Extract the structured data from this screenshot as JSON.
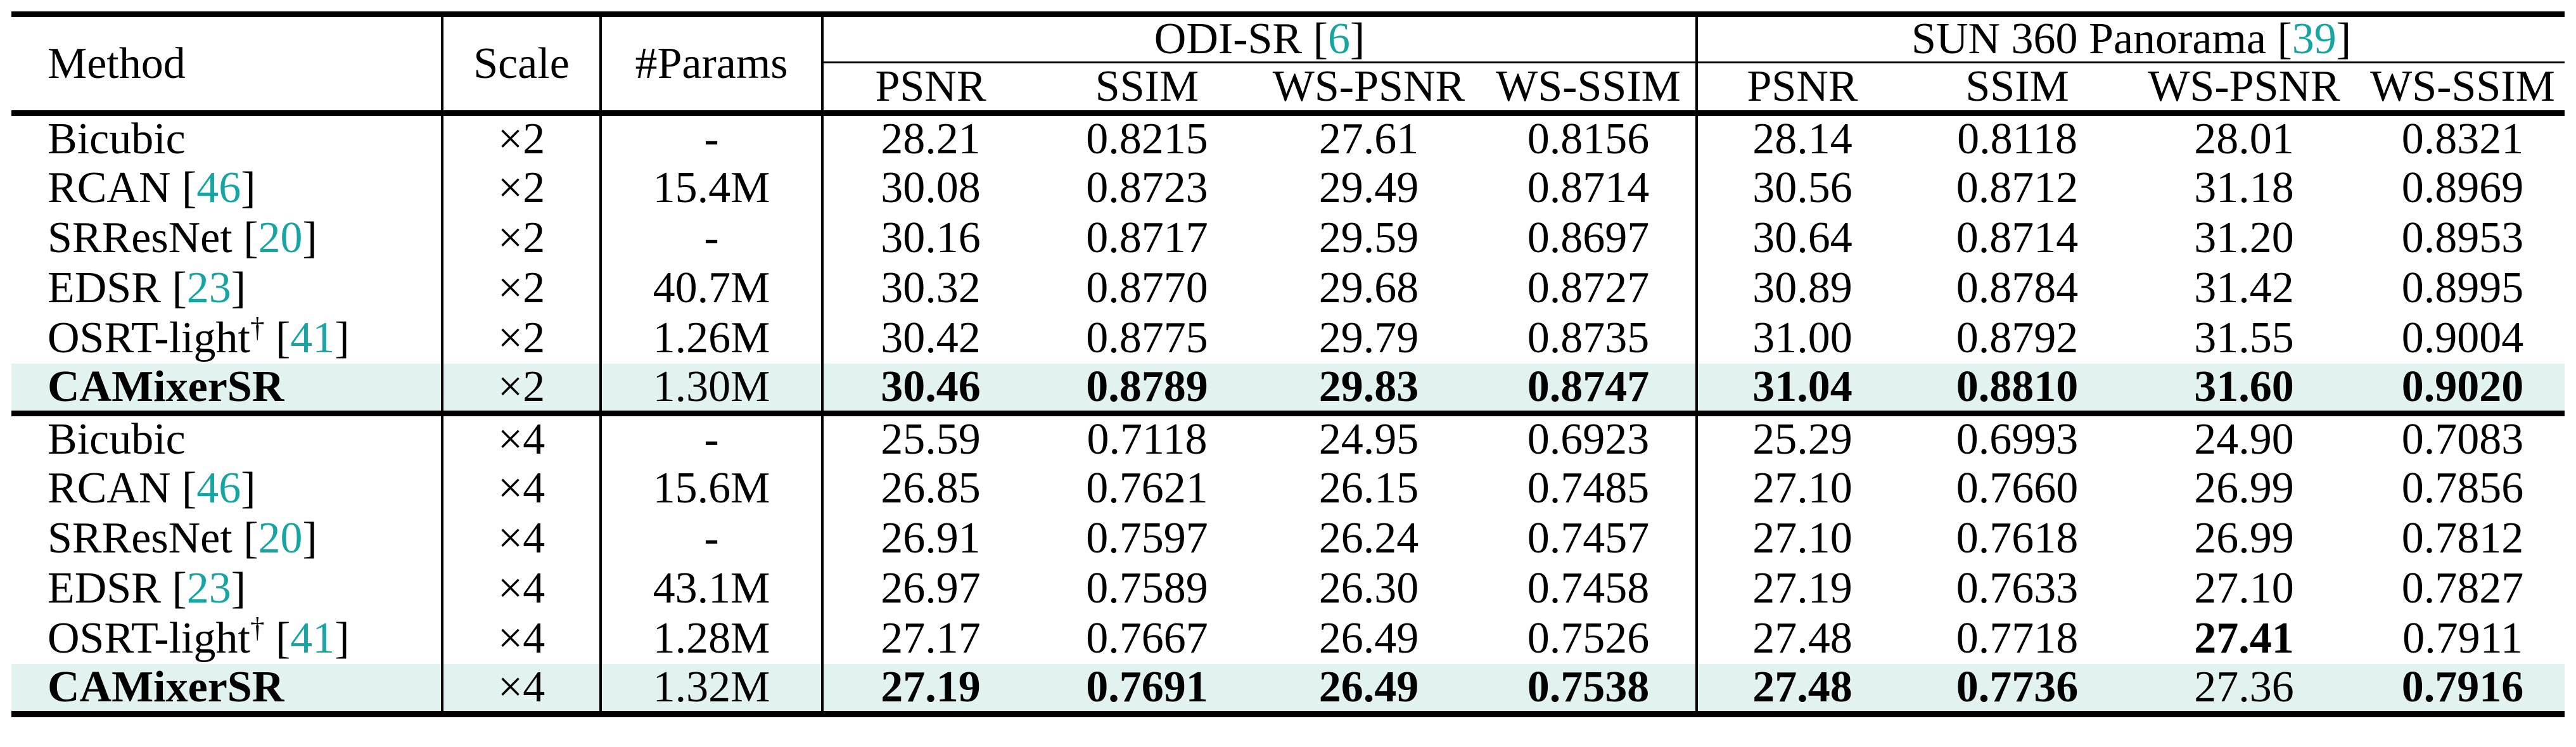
{
  "colors": {
    "citation": "#16a5a3",
    "highlight_row": "#e1f2f0",
    "text": "#000000",
    "rule": "#000000"
  },
  "table": {
    "headers": {
      "method": "Method",
      "scale": "Scale",
      "params": "#Params"
    },
    "punct": {
      "open": " [",
      "close": "]"
    },
    "groups": [
      {
        "title": "ODI-SR",
        "cite": "6",
        "metrics": [
          "PSNR",
          "SSIM",
          "WS-PSNR",
          "WS-SSIM"
        ]
      },
      {
        "title": "SUN 360 Panorama",
        "cite": "39",
        "metrics": [
          "PSNR",
          "SSIM",
          "WS-PSNR",
          "WS-SSIM"
        ]
      }
    ],
    "rows": [
      {
        "method": "Bicubic",
        "cite": "",
        "sup": "",
        "scale": "×2",
        "params": "-",
        "highlight": false,
        "method_bold": false,
        "values": [
          "28.21",
          "0.8215",
          "27.61",
          "0.8156",
          "28.14",
          "0.8118",
          "28.01",
          "0.8321"
        ],
        "bold": [
          0,
          0,
          0,
          0,
          0,
          0,
          0,
          0
        ]
      },
      {
        "method": "RCAN",
        "cite": "46",
        "sup": "",
        "scale": "×2",
        "params": "15.4M",
        "highlight": false,
        "method_bold": false,
        "values": [
          "30.08",
          "0.8723",
          "29.49",
          "0.8714",
          "30.56",
          "0.8712",
          "31.18",
          "0.8969"
        ],
        "bold": [
          0,
          0,
          0,
          0,
          0,
          0,
          0,
          0
        ]
      },
      {
        "method": "SRResNet",
        "cite": "20",
        "sup": "",
        "scale": "×2",
        "params": "-",
        "highlight": false,
        "method_bold": false,
        "values": [
          "30.16",
          "0.8717",
          "29.59",
          "0.8697",
          "30.64",
          "0.8714",
          "31.20",
          "0.8953"
        ],
        "bold": [
          0,
          0,
          0,
          0,
          0,
          0,
          0,
          0
        ]
      },
      {
        "method": "EDSR",
        "cite": "23",
        "sup": "",
        "scale": "×2",
        "params": "40.7M",
        "highlight": false,
        "method_bold": false,
        "values": [
          "30.32",
          "0.8770",
          "29.68",
          "0.8727",
          "30.89",
          "0.8784",
          "31.42",
          "0.8995"
        ],
        "bold": [
          0,
          0,
          0,
          0,
          0,
          0,
          0,
          0
        ]
      },
      {
        "method": "OSRT-light",
        "cite": "41",
        "sup": "†",
        "scale": "×2",
        "params": "1.26M",
        "highlight": false,
        "method_bold": false,
        "values": [
          "30.42",
          "0.8775",
          "29.79",
          "0.8735",
          "31.00",
          "0.8792",
          "31.55",
          "0.9004"
        ],
        "bold": [
          0,
          0,
          0,
          0,
          0,
          0,
          0,
          0
        ]
      },
      {
        "method": "CAMixerSR",
        "cite": "",
        "sup": "",
        "scale": "×2",
        "params": "1.30M",
        "highlight": true,
        "method_bold": true,
        "values": [
          "30.46",
          "0.8789",
          "29.83",
          "0.8747",
          "31.04",
          "0.8810",
          "31.60",
          "0.9020"
        ],
        "bold": [
          1,
          1,
          1,
          1,
          1,
          1,
          1,
          1
        ]
      },
      {
        "method": "Bicubic",
        "cite": "",
        "sup": "",
        "scale": "×4",
        "params": "-",
        "highlight": false,
        "method_bold": false,
        "values": [
          "25.59",
          "0.7118",
          "24.95",
          "0.6923",
          "25.29",
          "0.6993",
          "24.90",
          "0.7083"
        ],
        "bold": [
          0,
          0,
          0,
          0,
          0,
          0,
          0,
          0
        ]
      },
      {
        "method": "RCAN",
        "cite": "46",
        "sup": "",
        "scale": "×4",
        "params": "15.6M",
        "highlight": false,
        "method_bold": false,
        "values": [
          "26.85",
          "0.7621",
          "26.15",
          "0.7485",
          "27.10",
          "0.7660",
          "26.99",
          "0.7856"
        ],
        "bold": [
          0,
          0,
          0,
          0,
          0,
          0,
          0,
          0
        ]
      },
      {
        "method": "SRResNet",
        "cite": "20",
        "sup": "",
        "scale": "×4",
        "params": "-",
        "highlight": false,
        "method_bold": false,
        "values": [
          "26.91",
          "0.7597",
          "26.24",
          "0.7457",
          "27.10",
          "0.7618",
          "26.99",
          "0.7812"
        ],
        "bold": [
          0,
          0,
          0,
          0,
          0,
          0,
          0,
          0
        ]
      },
      {
        "method": "EDSR",
        "cite": "23",
        "sup": "",
        "scale": "×4",
        "params": "43.1M",
        "highlight": false,
        "method_bold": false,
        "values": [
          "26.97",
          "0.7589",
          "26.30",
          "0.7458",
          "27.19",
          "0.7633",
          "27.10",
          "0.7827"
        ],
        "bold": [
          0,
          0,
          0,
          0,
          0,
          0,
          0,
          0
        ]
      },
      {
        "method": "OSRT-light",
        "cite": "41",
        "sup": "†",
        "scale": "×4",
        "params": "1.28M",
        "highlight": false,
        "method_bold": false,
        "values": [
          "27.17",
          "0.7667",
          "26.49",
          "0.7526",
          "27.48",
          "0.7718",
          "27.41",
          "0.7911"
        ],
        "bold": [
          0,
          0,
          0,
          0,
          0,
          0,
          1,
          0
        ]
      },
      {
        "method": "CAMixerSR",
        "cite": "",
        "sup": "",
        "scale": "×4",
        "params": "1.32M",
        "highlight": true,
        "method_bold": true,
        "values": [
          "27.19",
          "0.7691",
          "26.49",
          "0.7538",
          "27.48",
          "0.7736",
          "27.36",
          "0.7916"
        ],
        "bold": [
          1,
          1,
          1,
          1,
          1,
          1,
          0,
          1
        ]
      }
    ]
  }
}
